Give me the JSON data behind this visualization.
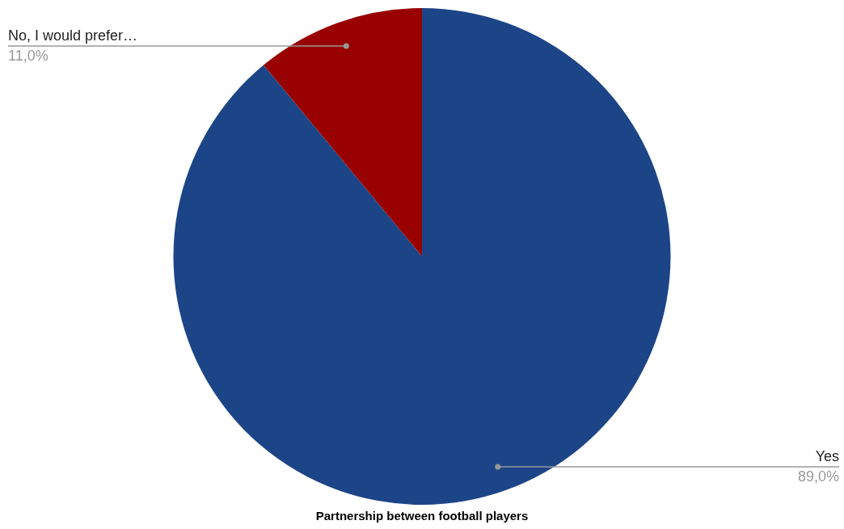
{
  "chart_data": {
    "type": "pie",
    "title": "Partnership between football players",
    "categories": [
      "Yes",
      "No, I would prefer…"
    ],
    "values": [
      89,
      11
    ],
    "colors": [
      "#1c4587",
      "#990000"
    ],
    "value_labels": [
      "89,0%",
      "11,0%"
    ],
    "legend": false
  }
}
